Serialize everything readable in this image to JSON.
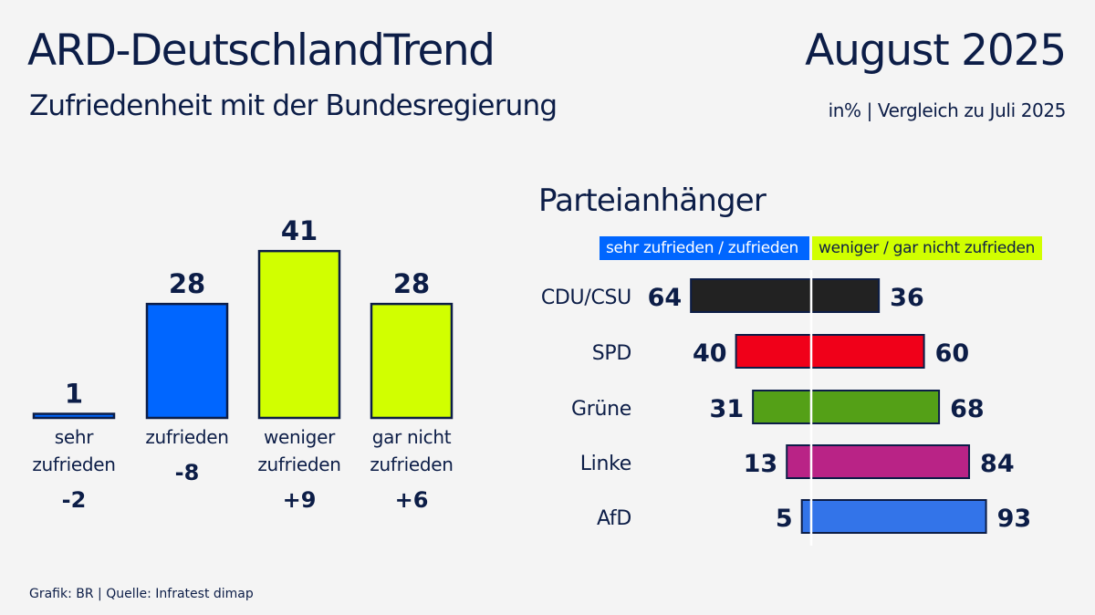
{
  "header": {
    "title": "ARD-DeutschlandTrend",
    "subtitle": "Zufriedenheit mit der Bundesregierung",
    "date": "August 2025",
    "unit_note": "in% | Vergleich zu Juli 2025"
  },
  "footer": "Grafik: BR | Quelle: Infratest dimap",
  "colors": {
    "background": "#f4f4f4",
    "text": "#0c1d47",
    "satisfied": "#0066ff",
    "dissatisfied": "#d1ff00",
    "outline": "#0c1d47"
  },
  "chart_data": [
    {
      "type": "bar",
      "title": "Zufriedenheit mit der Bundesregierung",
      "categories": [
        "sehr zufrieden",
        "zufrieden",
        "weniger zufrieden",
        "gar nicht zufrieden"
      ],
      "category_lines": [
        [
          "sehr",
          "zufrieden"
        ],
        [
          "zufrieden"
        ],
        [
          "weniger",
          "zufrieden"
        ],
        [
          "gar nicht",
          "zufrieden"
        ]
      ],
      "values": [
        1,
        28,
        41,
        28
      ],
      "value_labels": [
        "1",
        "28",
        "41",
        "28"
      ],
      "changes": [
        "-2",
        "-8",
        "+9",
        "+6"
      ],
      "change_note": "Vergleich zu Juli 2025",
      "bar_colors": [
        "#0066ff",
        "#0066ff",
        "#d1ff00",
        "#d1ff00"
      ],
      "unit": "%",
      "ylim": [
        0,
        41
      ],
      "grid": false
    },
    {
      "type": "bar",
      "orientation": "diverging-horizontal",
      "title": "Parteianhänger",
      "legend": {
        "position": "top",
        "entries": [
          {
            "label": "sehr zufrieden / zufrieden",
            "color": "#0066ff"
          },
          {
            "label": "weniger / gar nicht zufrieden",
            "color": "#d1ff00"
          }
        ]
      },
      "categories": [
        "CDU/CSU",
        "SPD",
        "Grüne",
        "Linke",
        "AfD"
      ],
      "series": [
        {
          "name": "sehr zufrieden / zufrieden",
          "values": [
            64,
            40,
            31,
            13,
            5
          ]
        },
        {
          "name": "weniger / gar nicht zufrieden",
          "values": [
            36,
            60,
            68,
            84,
            93
          ]
        }
      ],
      "bar_colors": [
        "#222222",
        "#f00019",
        "#54a017",
        "#b92386",
        "#3374e9"
      ],
      "unit": "%",
      "xlim": [
        -100,
        100
      ],
      "grid": false
    }
  ]
}
